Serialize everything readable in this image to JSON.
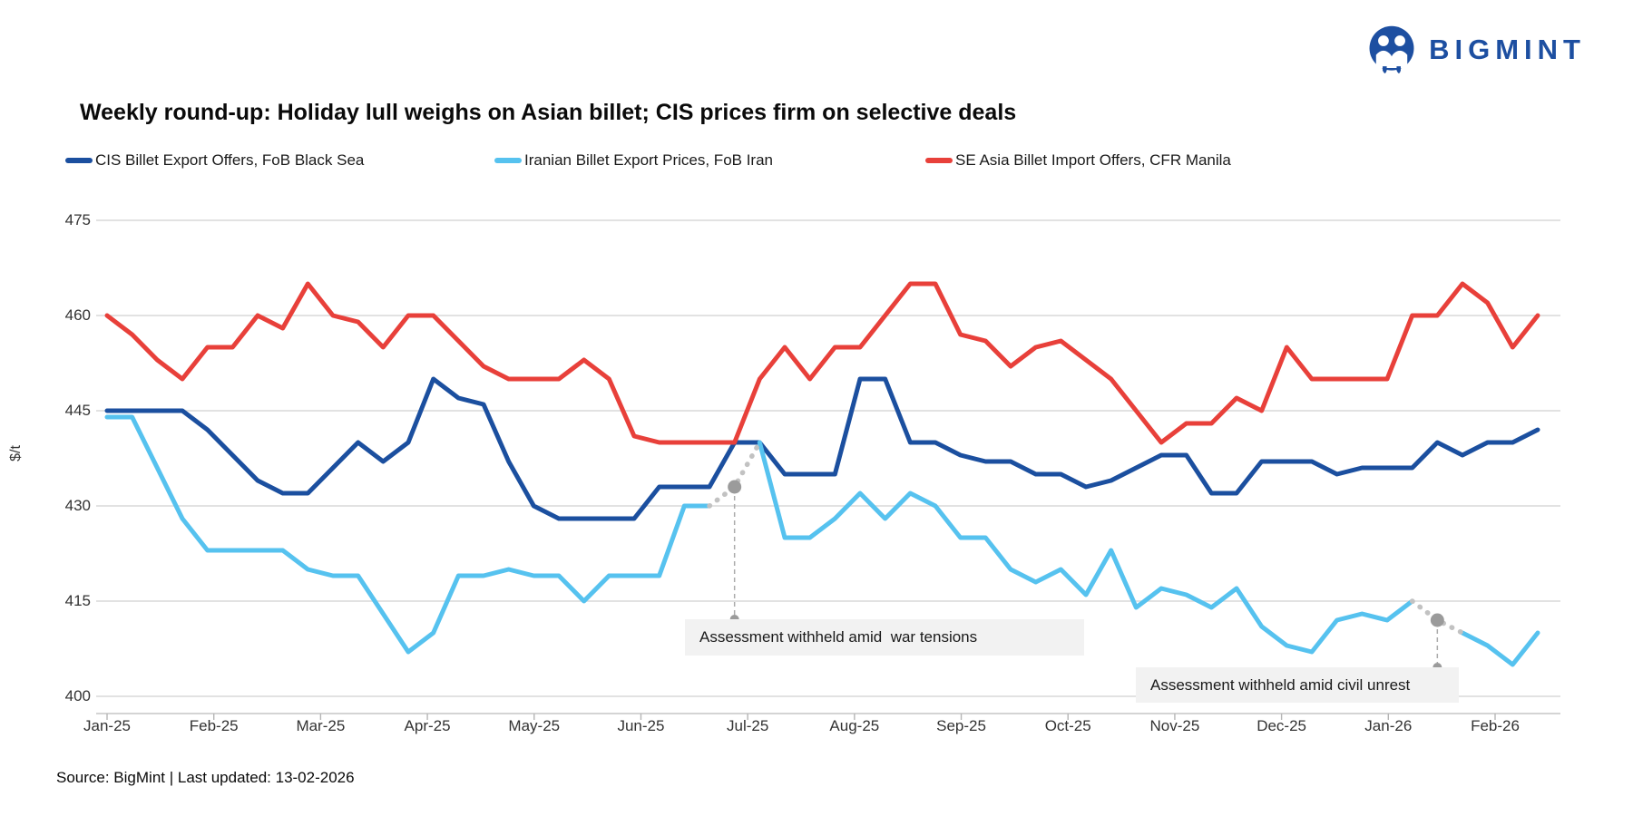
{
  "logo": {
    "text": "BIGMINT",
    "color": "#1d4fa1"
  },
  "title": "Weekly round-up: Holiday lull weighs on Asian billet; CIS prices firm on selective deals",
  "legend": [
    {
      "label": "CIS Billet Export Offers, FoB Black Sea",
      "color": "#1b4f9f"
    },
    {
      "label": "Iranian Billet Export Prices, FoB Iran",
      "color": "#56c2ef"
    },
    {
      "label": "SE Asia Billet Import Offers, CFR Manila",
      "color": "#e8403a"
    }
  ],
  "chart_data": {
    "type": "line",
    "title": "Weekly round-up: Holiday lull weighs on Asian billet; CIS prices firm on selective deals",
    "xlabel": "",
    "ylabel": "$/t",
    "ylim": [
      400,
      475
    ],
    "yticks": [
      475,
      460,
      445,
      430,
      415,
      400
    ],
    "x_frequency": "weekly",
    "x_tick_labels": [
      "Jan-25",
      "Feb-25",
      "Mar-25",
      "Apr-25",
      "May-25",
      "Jun-25",
      "Jul-25",
      "Aug-25",
      "Sep-25",
      "Oct-25",
      "Nov-25",
      "Dec-25",
      "Jan-26",
      "Feb-26"
    ],
    "grid": true,
    "legend_position": "top",
    "series": [
      {
        "name": "CIS Billet Export Offers, FoB Black Sea",
        "color": "#1b4f9f",
        "values": [
          445,
          445,
          445,
          445,
          442,
          438,
          434,
          432,
          432,
          436,
          440,
          437,
          440,
          450,
          447,
          446,
          437,
          430,
          428,
          428,
          428,
          428,
          433,
          433,
          433,
          440,
          440,
          435,
          435,
          435,
          450,
          450,
          440,
          440,
          438,
          437,
          437,
          435,
          435,
          433,
          434,
          436,
          438,
          438,
          432,
          432,
          437,
          437,
          437,
          435,
          436,
          436,
          436,
          440,
          438,
          440,
          440,
          442
        ]
      },
      {
        "name": "Iranian Billet Export Prices, FoB Iran",
        "color": "#56c2ef",
        "values": [
          444,
          444,
          436,
          428,
          423,
          423,
          423,
          423,
          420,
          419,
          419,
          413,
          407,
          410,
          419,
          419,
          420,
          419,
          419,
          415,
          419,
          419,
          419,
          430,
          430,
          null,
          440,
          425,
          425,
          428,
          432,
          428,
          432,
          430,
          425,
          425,
          420,
          418,
          420,
          416,
          423,
          414,
          417,
          416,
          414,
          417,
          411,
          408,
          407,
          412,
          413,
          412,
          415,
          null,
          410,
          408,
          405,
          410
        ]
      },
      {
        "name": "SE Asia Billet Import Offers, CFR Manila",
        "color": "#e8403a",
        "values": [
          460,
          457,
          453,
          450,
          455,
          455,
          460,
          458,
          465,
          460,
          459,
          455,
          460,
          460,
          456,
          452,
          450,
          450,
          450,
          453,
          450,
          441,
          440,
          440,
          440,
          440,
          450,
          455,
          450,
          455,
          455,
          460,
          465,
          465,
          457,
          456,
          452,
          455,
          456,
          453,
          450,
          445,
          440,
          443,
          443,
          447,
          445,
          455,
          450,
          450,
          450,
          450,
          460,
          460,
          465,
          462,
          455,
          460
        ]
      }
    ],
    "annotations": [
      {
        "text": "Assessment withheld amid  war tensions",
        "series": "Iranian Billet Export Prices, FoB Iran",
        "week_index": 25,
        "withheld_value": 433
      },
      {
        "text": "Assessment withheld amid civil unrest",
        "series": "Iranian Billet Export Prices, FoB Iran",
        "week_index": 53,
        "withheld_value": 412
      }
    ]
  },
  "source": "Source: BigMint | Last updated: 13-02-2026"
}
